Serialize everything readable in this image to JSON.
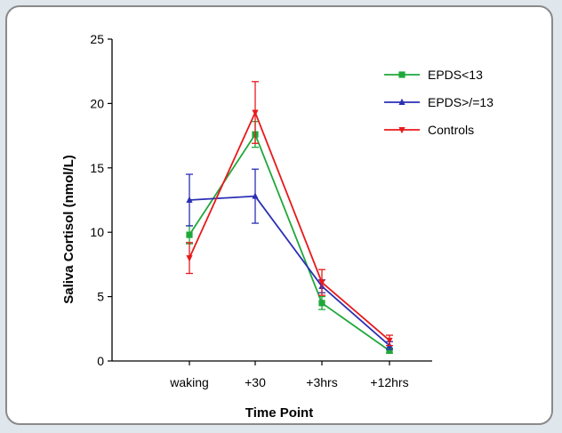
{
  "chart_data": {
    "type": "line",
    "title": "",
    "xlabel": "Time Point",
    "ylabel": "Saliva Cortisol (nmol/L)",
    "categories": [
      "waking",
      "+30",
      "+3hrs",
      "+12hrs"
    ],
    "ylim": [
      0,
      25
    ],
    "yticks": [
      0,
      5,
      10,
      15,
      20,
      25
    ],
    "grid": false,
    "legend_position": "top-right",
    "series": [
      {
        "name": "EPDS<13",
        "color": "#1fa83a",
        "marker": "square",
        "values": [
          9.8,
          17.6,
          4.5,
          0.8
        ],
        "error": [
          0.7,
          1.0,
          0.5,
          0.2
        ]
      },
      {
        "name": "EPDS>/=13",
        "color": "#2b2fb5",
        "marker": "triangle-up",
        "values": [
          12.5,
          12.8,
          5.8,
          1.2
        ],
        "error": [
          2.0,
          2.1,
          0.5,
          0.3
        ]
      },
      {
        "name": "Controls",
        "color": "#e8191b",
        "marker": "triangle-down",
        "values": [
          8.0,
          19.3,
          6.1,
          1.6
        ],
        "error": [
          1.2,
          2.4,
          1.0,
          0.4
        ]
      }
    ]
  }
}
